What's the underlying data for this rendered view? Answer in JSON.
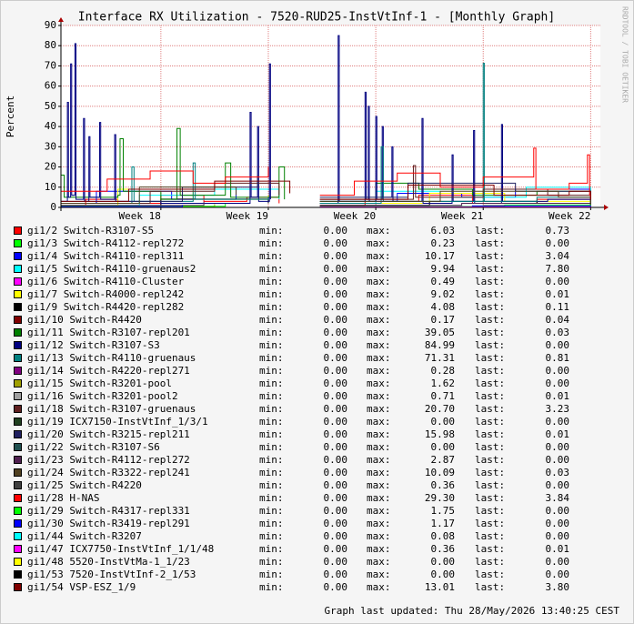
{
  "chart_data": {
    "type": "line",
    "step": true,
    "title": "Interface RX Utilization - 7520-RUD25-InstVtInf-1 - [Monthly Graph]",
    "y_label": "Percent",
    "side_text": "RRDTOOL / TOBI OETIKER",
    "footer": "Graph last updated: Thu 28/May/2026 13:40:25 CEST",
    "legend_labels": {
      "min": "min:",
      "max": "max:",
      "last": "last:"
    },
    "xlim": [
      17.07,
      22.09
    ],
    "xticks": [
      {
        "value": 18,
        "label": "Week 18"
      },
      {
        "value": 19,
        "label": "Week 19"
      },
      {
        "value": 20,
        "label": "Week 20"
      },
      {
        "value": 21,
        "label": "Week 21"
      },
      {
        "value": 22,
        "label": "Week 22"
      }
    ],
    "ylim": [
      0,
      90
    ],
    "yticks": [
      0,
      10,
      20,
      30,
      40,
      50,
      60,
      70,
      80,
      90
    ],
    "grid": true,
    "series": [
      {
        "name": "gi1/2 Switch-R3107-S5",
        "color": "#ff0000",
        "min": "0.00",
        "max": "6.03",
        "last": "0.73",
        "x": [
          17.07,
          17.3,
          17.6,
          18.0,
          18.4,
          18.8,
          19.1,
          19.3,
          19.48,
          19.9,
          20.4,
          20.9,
          21.5,
          22.0
        ],
        "values": [
          1,
          4,
          2,
          6,
          3,
          5,
          2,
          null,
          1,
          3,
          6,
          2,
          4,
          0.73
        ]
      },
      {
        "name": "gi1/3 Switch-R4112-repl272",
        "color": "#00ff00",
        "min": "0.00",
        "max": "0.23",
        "last": "0.00",
        "x": [
          17.07,
          19.3,
          19.48,
          22.0
        ],
        "values": [
          0.2,
          null,
          0.1,
          0
        ]
      },
      {
        "name": "gi1/4 Switch-R4110-repl311",
        "color": "#0000ff",
        "min": "0.00",
        "max": "10.17",
        "last": "3.04",
        "x": [
          17.07,
          17.4,
          18.1,
          18.7,
          19.3,
          19.48,
          20.2,
          20.8,
          21.3,
          22.0
        ],
        "values": [
          2,
          8,
          4,
          10.17,
          null,
          3,
          7,
          5,
          9,
          3.04
        ]
      },
      {
        "name": "gi1/5 Switch-R4110-gruenaus2",
        "color": "#00ffff",
        "min": "0.00",
        "max": "9.94",
        "last": "7.80",
        "x": [
          17.07,
          17.8,
          18.5,
          19.1,
          19.3,
          19.48,
          20.0,
          20.6,
          21.4,
          22.0
        ],
        "values": [
          1,
          6,
          9,
          4,
          null,
          2,
          8,
          5,
          9.94,
          7.8
        ]
      },
      {
        "name": "gi1/6 Switch-R4110-Cluster",
        "color": "#ff00ff",
        "min": "0.00",
        "max": "0.49",
        "last": "0.00",
        "x": [
          17.07,
          19.3,
          19.48,
          22.0
        ],
        "values": [
          0.3,
          null,
          0.2,
          0
        ]
      },
      {
        "name": "gi1/7 Switch-R4000-repl242",
        "color": "#ffff00",
        "min": "0.00",
        "max": "9.02",
        "last": "0.01",
        "x": [
          17.07,
          17.6,
          18.3,
          19.0,
          19.3,
          19.48,
          20.5,
          21.2,
          22.0
        ],
        "values": [
          1,
          9.02,
          4,
          6,
          null,
          2,
          7,
          3,
          0
        ]
      },
      {
        "name": "gi1/9 Switch-R4420-repl282",
        "color": "#000000",
        "min": "0.00",
        "max": "4.08",
        "last": "0.11",
        "x": [
          17.07,
          18.0,
          19.0,
          19.3,
          19.48,
          20.5,
          21.5,
          22.0
        ],
        "values": [
          0.5,
          4.08,
          2,
          null,
          1,
          3,
          2,
          0.11
        ]
      },
      {
        "name": "gi1/10 Switch-R4420",
        "color": "#800000",
        "min": "0.00",
        "max": "0.17",
        "last": "0.04",
        "x": [
          17.07,
          19.3,
          19.48,
          22.0
        ],
        "values": [
          0.1,
          null,
          0.1,
          0.04
        ]
      },
      {
        "name": "gi1/11 Switch-R3107-repl201",
        "color": "#008000",
        "min": "0.00",
        "max": "39.05",
        "last": "0.03",
        "x": [
          17.07,
          17.1,
          17.6,
          17.62,
          17.65,
          18.0,
          18.15,
          18.18,
          18.6,
          18.65,
          19.1,
          19.15,
          19.3,
          19.48,
          20.0,
          20.4,
          20.9,
          21.5,
          22.0
        ],
        "values": [
          16,
          5,
          6,
          34,
          8,
          4,
          39.05,
          6,
          22,
          5,
          20,
          4,
          null,
          3,
          12,
          9,
          6,
          8,
          0
        ]
      },
      {
        "name": "gi1/12 Switch-R3107-S3",
        "color": "#000080",
        "min": "0.00",
        "max": "84.99",
        "last": "0.00",
        "x": [
          17.07,
          17.13,
          17.14,
          17.16,
          17.17,
          17.2,
          17.21,
          17.28,
          17.29,
          17.33,
          17.34,
          17.43,
          17.44,
          17.57,
          17.58,
          18.0,
          18.83,
          18.84,
          18.9,
          18.91,
          19.01,
          19.02,
          19.3,
          19.48,
          19.65,
          19.66,
          19.9,
          19.91,
          19.93,
          19.94,
          20.0,
          20.01,
          20.06,
          20.07,
          20.15,
          20.16,
          20.43,
          20.44,
          20.71,
          20.72,
          20.91,
          20.92,
          21.17,
          21.18,
          21.6,
          22.0
        ],
        "values": [
          3,
          52,
          5,
          71,
          6,
          81,
          4,
          44,
          3,
          35,
          5,
          42,
          4,
          36,
          3,
          2,
          47,
          5,
          40,
          3,
          71,
          4,
          null,
          2,
          84.99,
          3,
          57,
          4,
          50,
          3,
          45,
          4,
          40,
          5,
          30,
          3,
          44,
          2,
          26,
          3,
          38,
          2,
          41,
          3,
          4,
          0
        ]
      },
      {
        "name": "gi1/13 Switch-R4110-gruenaus",
        "color": "#008080",
        "min": "0.00",
        "max": "71.31",
        "last": "0.81",
        "x": [
          17.07,
          17.73,
          17.75,
          18.3,
          18.32,
          19.0,
          19.3,
          19.48,
          20.05,
          20.07,
          21.0,
          21.01,
          21.5,
          22.0
        ],
        "values": [
          2,
          20,
          3,
          22,
          4,
          5,
          null,
          2,
          30,
          3,
          71.31,
          3,
          5,
          0.81
        ]
      },
      {
        "name": "gi1/14 Switch-R4220-repl271",
        "color": "#800080",
        "min": "0.00",
        "max": "0.28",
        "last": "0.00",
        "x": [
          17.07,
          19.3,
          19.48,
          22.0
        ],
        "values": [
          0.2,
          null,
          0.1,
          0
        ]
      },
      {
        "name": "gi1/15 Switch-R3201-pool",
        "color": "#a0a000",
        "min": "0.00",
        "max": "1.62",
        "last": "0.00",
        "x": [
          17.07,
          18.5,
          19.3,
          19.48,
          21.0,
          22.0
        ],
        "values": [
          0.5,
          1.62,
          null,
          0.4,
          1,
          0
        ]
      },
      {
        "name": "gi1/16 Switch-R3201-pool2",
        "color": "#a0a0a0",
        "min": "0.00",
        "max": "0.71",
        "last": "0.01",
        "x": [
          17.07,
          19.3,
          19.48,
          22.0
        ],
        "values": [
          0.4,
          null,
          0.3,
          0.01
        ]
      },
      {
        "name": "gi1/18 Switch-R3107-gruenaus",
        "color": "#602020",
        "min": "0.00",
        "max": "20.70",
        "last": "3.23",
        "x": [
          17.07,
          17.9,
          18.5,
          19.1,
          19.3,
          19.48,
          20.35,
          20.37,
          21.0,
          21.6,
          22.0
        ],
        "values": [
          2,
          8,
          12,
          6,
          null,
          4,
          20.7,
          5,
          9,
          6,
          3.23
        ]
      },
      {
        "name": "gi1/19 ICX7150-InstVtInf_1/3/1",
        "color": "#204020",
        "min": "0.00",
        "max": "0.00",
        "last": "0.00",
        "x": [
          17.07,
          19.3,
          19.48,
          22.0
        ],
        "values": [
          0,
          null,
          0,
          0
        ]
      },
      {
        "name": "gi1/20 Switch-R3215-repl211",
        "color": "#202060",
        "min": "0.00",
        "max": "15.98",
        "last": "0.01",
        "x": [
          17.07,
          18.2,
          18.9,
          19.3,
          19.48,
          20.3,
          21.3,
          22.0
        ],
        "values": [
          3,
          10,
          15.98,
          null,
          5,
          12,
          8,
          0
        ]
      },
      {
        "name": "gi1/22 Switch-R3107-S6",
        "color": "#205050",
        "min": "0.00",
        "max": "0.00",
        "last": "0.00",
        "x": [
          17.07,
          19.3,
          19.48,
          22.0
        ],
        "values": [
          0,
          null,
          0,
          0
        ]
      },
      {
        "name": "gi1/23 Switch-R4112-repl272",
        "color": "#502050",
        "min": "0.00",
        "max": "2.87",
        "last": "0.00",
        "x": [
          17.07,
          18.4,
          19.3,
          19.48,
          20.8,
          22.0
        ],
        "values": [
          1,
          2.87,
          null,
          1,
          2,
          0
        ]
      },
      {
        "name": "gi1/24 Switch-R3322-repl241",
        "color": "#504020",
        "min": "0.00",
        "max": "10.09",
        "last": "0.03",
        "x": [
          17.07,
          17.8,
          18.7,
          19.3,
          19.48,
          20.6,
          21.7,
          22.0
        ],
        "values": [
          2,
          10.09,
          6,
          null,
          3,
          8,
          5,
          0
        ]
      },
      {
        "name": "gi1/25 Switch-R4220",
        "color": "#404040",
        "min": "0.00",
        "max": "0.36",
        "last": "0.00",
        "x": [
          17.07,
          19.3,
          19.48,
          22.0
        ],
        "values": [
          0.3,
          null,
          0.2,
          0
        ]
      },
      {
        "name": "gi1/28 H-NAS",
        "color": "#ff0000",
        "min": "0.00",
        "max": "29.30",
        "last": "3.84",
        "x": [
          17.07,
          17.5,
          17.9,
          18.3,
          18.6,
          19.0,
          19.3,
          19.48,
          19.8,
          20.2,
          20.6,
          21.0,
          21.47,
          21.49,
          21.8,
          21.97,
          21.99,
          22.0
        ],
        "values": [
          8,
          14,
          18,
          12,
          15,
          20,
          null,
          6,
          13,
          17,
          10,
          15,
          29.3,
          9,
          12,
          26,
          6,
          3.84
        ]
      },
      {
        "name": "gi1/29 Switch-R4317-repl331",
        "color": "#00ff00",
        "min": "0.00",
        "max": "1.75",
        "last": "0.00",
        "x": [
          17.07,
          18.6,
          19.3,
          19.48,
          21.2,
          22.0
        ],
        "values": [
          0.5,
          1.75,
          null,
          0.4,
          1.2,
          0
        ]
      },
      {
        "name": "gi1/30 Switch-R3419-repl291",
        "color": "#0000ff",
        "min": "0.00",
        "max": "1.17",
        "last": "0.00",
        "x": [
          17.07,
          18.2,
          19.3,
          19.48,
          20.9,
          22.0
        ],
        "values": [
          0.4,
          1.17,
          null,
          0.3,
          0.8,
          0
        ]
      },
      {
        "name": "gi1/44 Switch-R3207",
        "color": "#00ffff",
        "min": "0.00",
        "max": "0.08",
        "last": "0.00",
        "x": [
          17.07,
          19.3,
          19.48,
          22.0
        ],
        "values": [
          0.05,
          null,
          0.05,
          0
        ]
      },
      {
        "name": "gi1/47 ICX7750-InstVtInf_1/1/48",
        "color": "#ff00ff",
        "min": "0.00",
        "max": "0.36",
        "last": "0.01",
        "x": [
          17.07,
          19.3,
          19.48,
          22.0
        ],
        "values": [
          0.2,
          null,
          0.2,
          0.01
        ]
      },
      {
        "name": "gi1/48 5520-InstVtMa-1_1/23",
        "color": "#ffff00",
        "min": "0.00",
        "max": "0.00",
        "last": "0.00",
        "x": [
          17.07,
          19.3,
          19.48,
          22.0
        ],
        "values": [
          0,
          null,
          0,
          0
        ]
      },
      {
        "name": "gi1/53 7520-InstVtInf-2_1/53",
        "color": "#000000",
        "min": "0.00",
        "max": "0.00",
        "last": "0.00",
        "x": [
          17.07,
          19.3,
          19.48,
          22.0
        ],
        "values": [
          0,
          null,
          0,
          0
        ]
      },
      {
        "name": "gi1/54 VSP-ESZ_1/9",
        "color": "#800000",
        "min": "0.00",
        "max": "13.01",
        "last": "3.80",
        "x": [
          17.07,
          17.7,
          18.5,
          19.2,
          19.3,
          19.48,
          20.3,
          21.1,
          21.8,
          22.0
        ],
        "values": [
          3,
          9,
          13.01,
          7,
          null,
          4,
          11,
          6,
          8,
          3.8
        ]
      }
    ]
  }
}
